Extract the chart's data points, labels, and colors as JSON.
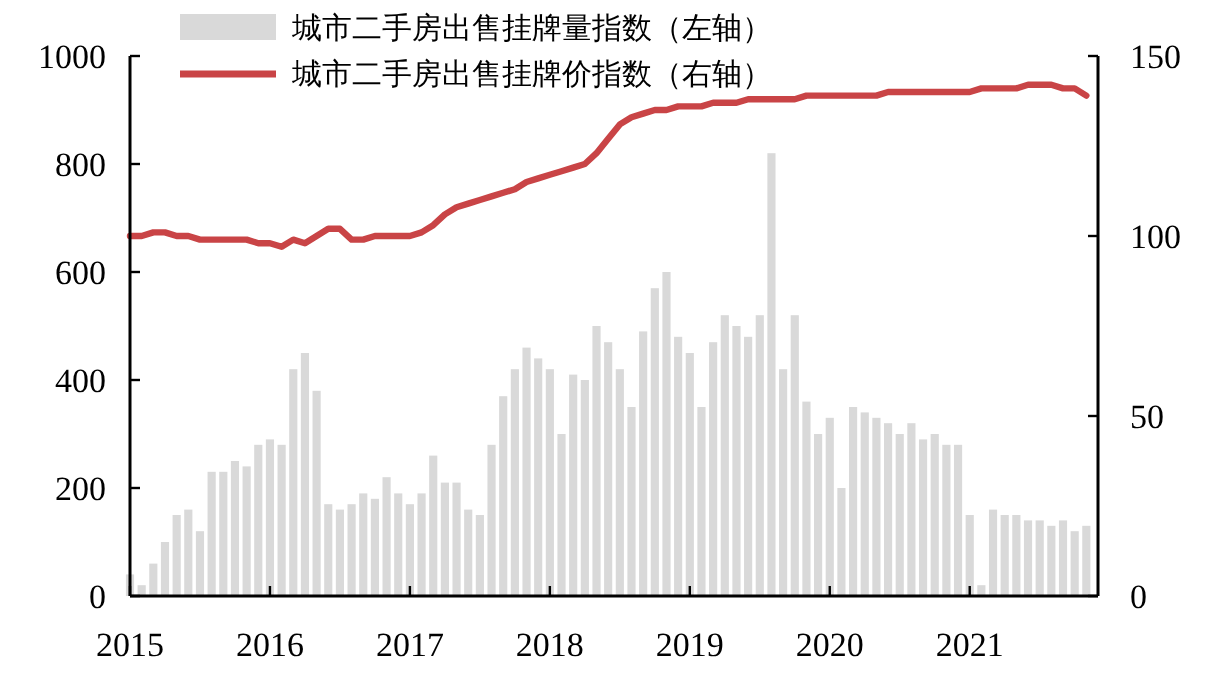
{
  "chart_data": {
    "type": "bar",
    "legend": "top",
    "x": [
      "2015-01",
      "2015-02",
      "2015-03",
      "2015-04",
      "2015-05",
      "2015-06",
      "2015-07",
      "2015-08",
      "2015-09",
      "2015-10",
      "2015-11",
      "2015-12",
      "2016-01",
      "2016-02",
      "2016-03",
      "2016-04",
      "2016-05",
      "2016-06",
      "2016-07",
      "2016-08",
      "2016-09",
      "2016-10",
      "2016-11",
      "2016-12",
      "2017-01",
      "2017-02",
      "2017-03",
      "2017-04",
      "2017-05",
      "2017-06",
      "2017-07",
      "2017-08",
      "2017-09",
      "2017-10",
      "2017-11",
      "2017-12",
      "2018-01",
      "2018-02",
      "2018-03",
      "2018-04",
      "2018-05",
      "2018-06",
      "2018-07",
      "2018-08",
      "2018-09",
      "2018-10",
      "2018-11",
      "2018-12",
      "2019-01",
      "2019-02",
      "2019-03",
      "2019-04",
      "2019-05",
      "2019-06",
      "2019-07",
      "2019-08",
      "2019-09",
      "2019-10",
      "2019-11",
      "2019-12",
      "2020-01",
      "2020-02",
      "2020-03",
      "2020-04",
      "2020-05",
      "2020-06",
      "2020-07",
      "2020-08",
      "2020-09",
      "2020-10",
      "2020-11",
      "2020-12",
      "2021-01",
      "2021-02",
      "2021-03",
      "2021-04",
      "2021-05",
      "2021-06",
      "2021-07",
      "2021-08",
      "2021-09",
      "2021-10",
      "2021-11"
    ],
    "xlim": [
      "2015-01",
      "2021-12"
    ],
    "xticks": [
      "2015",
      "2016",
      "2017",
      "2018",
      "2019",
      "2020",
      "2021"
    ],
    "ylim": [
      0,
      1000
    ],
    "yticks": [
      0,
      200,
      400,
      600,
      800,
      1000
    ],
    "y2lim": [
      0,
      150
    ],
    "y2ticks": [
      0,
      50,
      100,
      150
    ],
    "series": [
      {
        "name": "城市二手房出售挂牌量指数（左轴）",
        "color": "#d9d9d9",
        "values": [
          40,
          20,
          60,
          100,
          150,
          160,
          120,
          230,
          230,
          250,
          240,
          280,
          290,
          280,
          420,
          450,
          380,
          170,
          160,
          170,
          190,
          180,
          220,
          190,
          170,
          190,
          260,
          210,
          210,
          160,
          150,
          280,
          370,
          420,
          460,
          440,
          420,
          300,
          410,
          400,
          500,
          470,
          420,
          350,
          490,
          570,
          600,
          480,
          450,
          350,
          470,
          520,
          500,
          480,
          520,
          820,
          420,
          520,
          360,
          300,
          330,
          200,
          350,
          340,
          330,
          320,
          300,
          320,
          290,
          300,
          280,
          280,
          150,
          20,
          160,
          150,
          150,
          140,
          140,
          130,
          140,
          120,
          130
        ]
      },
      {
        "name": "城市二手房出售挂牌价指数（右轴）",
        "type": "line",
        "axis": "y2",
        "color": "#c94446",
        "values": [
          100,
          100,
          101,
          101,
          100,
          100,
          99,
          99,
          99,
          99,
          99,
          98,
          98,
          97,
          99,
          98,
          100,
          102,
          102,
          99,
          99,
          100,
          100,
          100,
          100,
          101,
          103,
          106,
          108,
          109,
          110,
          111,
          112,
          113,
          115,
          116,
          117,
          118,
          119,
          120,
          123,
          127,
          131,
          133,
          134,
          135,
          135,
          136,
          136,
          136,
          137,
          137,
          137,
          138,
          138,
          138,
          138,
          138,
          139,
          139,
          139,
          139,
          139,
          139,
          139,
          140,
          140,
          140,
          140,
          140,
          140,
          140,
          140,
          141,
          141,
          141,
          141,
          142,
          142,
          142,
          141,
          141,
          139
        ]
      }
    ]
  }
}
